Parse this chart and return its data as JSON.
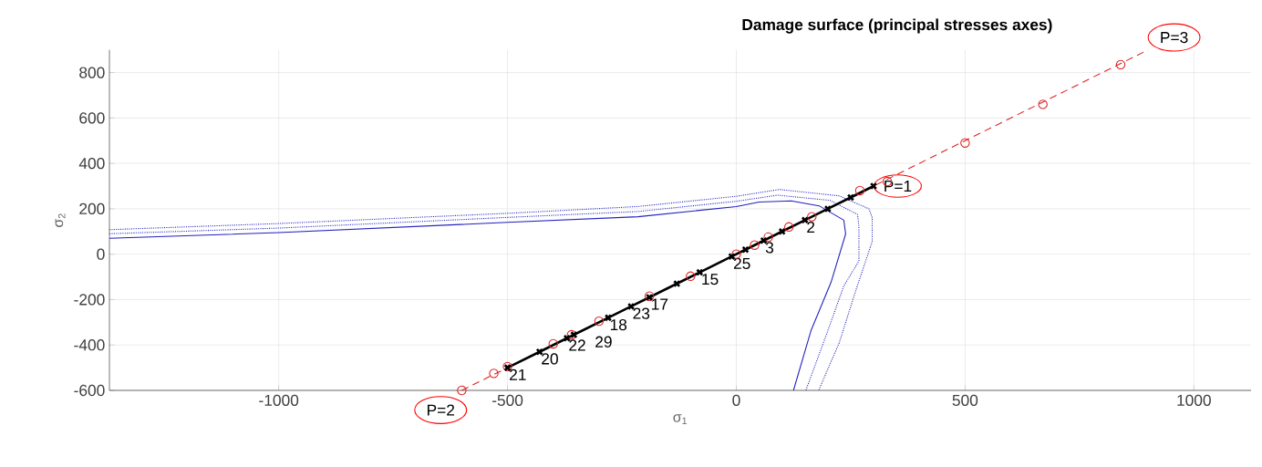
{
  "chart_data": {
    "type": "line",
    "title": "Damage surface (principal stresses axes)",
    "xlabel": "σ$_{1}$",
    "ylabel": "σ$_{2}$",
    "xlim": [
      -1370,
      1125
    ],
    "ylim": [
      -600,
      900
    ],
    "xticks": [
      -1000,
      -500,
      0,
      500,
      1000
    ],
    "yticks": [
      -600,
      -400,
      -200,
      0,
      200,
      400,
      600,
      800
    ],
    "grid": true,
    "series": [
      {
        "color": "#2020c0",
        "line_style": "solid",
        "marker": "none",
        "x": [
          -1370,
          -1000,
          -500,
          -215,
          0,
          50,
          120,
          181,
          235,
          239,
          207,
          163,
          125
        ],
        "values": [
          70,
          95,
          140,
          165,
          210,
          230,
          235,
          213,
          150,
          89,
          -124,
          -338,
          -600
        ]
      },
      {
        "color": "#2020c0",
        "line_style": "dotted",
        "marker": "none",
        "x": [
          -1370,
          -1000,
          -500,
          -215,
          0,
          90,
          205,
          265,
          268,
          268,
          235,
          195,
          152
        ],
        "values": [
          90,
          115,
          162,
          188,
          233,
          260,
          237,
          175,
          120,
          -30,
          -140,
          -365,
          -600
        ]
      },
      {
        "color": "#2020c0",
        "line_style": "dotted",
        "marker": "none",
        "x": [
          -1370,
          -1000,
          -500,
          -215,
          0,
          94,
          225,
          290,
          297,
          297,
          261,
          225,
          180
        ],
        "values": [
          108,
          135,
          180,
          210,
          255,
          285,
          257,
          200,
          161,
          56,
          -161,
          -390,
          -600
        ]
      },
      {
        "color": "#e02020",
        "line_style": "dashed",
        "marker": "none",
        "x": [
          -600,
          900
        ],
        "values": [
          -600,
          900
        ]
      },
      {
        "type": "scatter",
        "color": "#e02020",
        "marker": "circle",
        "x": [
          -600,
          -530,
          -500,
          -400,
          -360,
          -300,
          -190,
          -100,
          0,
          40,
          70,
          115,
          165,
          270,
          330,
          500,
          670,
          840
        ],
        "values": [
          -600,
          -525,
          -495,
          -395,
          -355,
          -295,
          -185,
          -97,
          0,
          40,
          75,
          120,
          165,
          280,
          320,
          490,
          660,
          835
        ]
      },
      {
        "color": "#000000",
        "line_style": "solid",
        "marker": "cross",
        "x": [
          -500,
          -430,
          -370,
          -355,
          -280,
          -230,
          -190,
          -130,
          -80,
          -10,
          20,
          60,
          100,
          150,
          200,
          250,
          300
        ],
        "values": [
          -500,
          -430,
          -370,
          -355,
          -280,
          -230,
          -190,
          -130,
          -80,
          -10,
          20,
          60,
          100,
          150,
          200,
          250,
          300
        ]
      }
    ],
    "annotations": [
      {
        "text": "P=1",
        "x": 300,
        "y": 300
      },
      "P=2",
      "P=3",
      {
        "text": "21",
        "x": -500,
        "y": -500
      },
      {
        "text": "20",
        "x": -430,
        "y": -430
      },
      {
        "text": "22",
        "x": -370,
        "y": -370
      },
      {
        "text": "29",
        "x": -355,
        "y": -355
      },
      {
        "text": "18",
        "x": -280,
        "y": -280
      },
      {
        "text": "23",
        "x": -230,
        "y": -230
      },
      {
        "text": "17",
        "x": -190,
        "y": -190
      },
      {
        "text": "15",
        "x": -80,
        "y": -80
      },
      {
        "text": "25",
        "x": -10,
        "y": -10
      },
      {
        "text": "3",
        "x": 60,
        "y": 60
      },
      {
        "text": "2",
        "x": 150,
        "y": 150
      }
    ]
  }
}
